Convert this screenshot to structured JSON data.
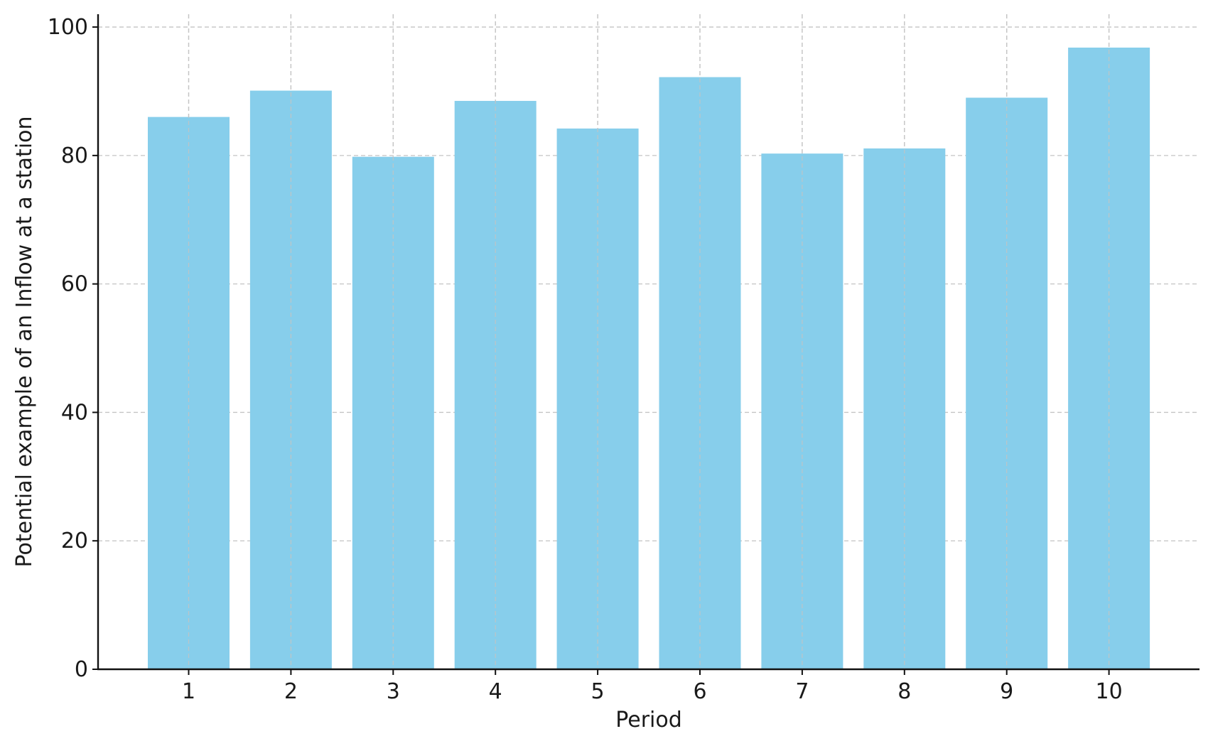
{
  "chart_data": {
    "type": "bar",
    "title": "",
    "xlabel": "Period",
    "ylabel": "Potential example of an Inflow at a station",
    "categories": [
      "1",
      "2",
      "3",
      "4",
      "5",
      "6",
      "7",
      "8",
      "9",
      "10"
    ],
    "values": [
      86.0,
      90.1,
      79.8,
      88.5,
      84.2,
      92.2,
      80.3,
      81.1,
      89.0,
      96.8
    ],
    "ylim": [
      0,
      102
    ],
    "yticks": [
      0,
      20,
      40,
      60,
      80,
      100
    ],
    "grid": true,
    "bar_color": "#87CEEB",
    "grid_color": "#c4c4c4",
    "axis_color": "#111111"
  }
}
